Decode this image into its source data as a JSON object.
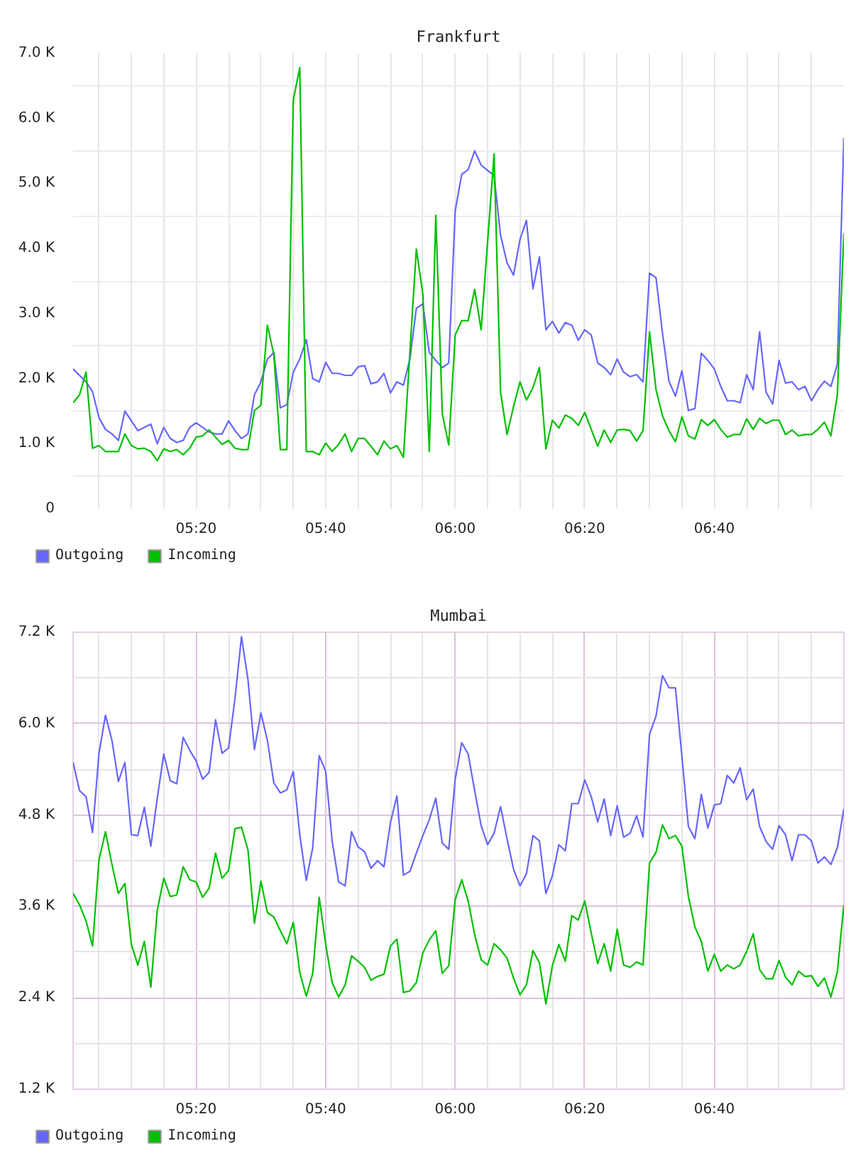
{
  "chart_data": [
    {
      "type": "line",
      "title": "Frankfurt",
      "x": [
        5.0167,
        5.0333,
        5.05,
        5.0667,
        5.0833,
        5.1,
        5.1167,
        5.1333,
        5.15,
        5.1667,
        5.1833,
        5.2,
        5.2167,
        5.2333,
        5.25,
        5.2667,
        5.2833,
        5.3,
        5.3167,
        5.3333,
        5.35,
        5.3667,
        5.3833,
        5.4,
        5.4167,
        5.4333,
        5.45,
        5.4667,
        5.4833,
        5.5,
        5.5167,
        5.5333,
        5.55,
        5.5667,
        5.5833,
        5.6,
        5.6167,
        5.6333,
        5.65,
        5.6667,
        5.6833,
        5.7,
        5.7167,
        5.7333,
        5.75,
        5.7667,
        5.7833,
        5.8,
        5.8167,
        5.8333,
        5.85,
        5.8667,
        5.8833,
        5.9,
        5.9167,
        5.9333,
        5.95,
        5.9667,
        5.9833,
        6.0,
        6.0167,
        6.0333,
        6.05,
        6.0667,
        6.0833,
        6.1,
        6.1167,
        6.1333,
        6.15,
        6.1667,
        6.1833,
        6.2,
        6.2167,
        6.2333,
        6.25,
        6.2667,
        6.2833,
        6.3,
        6.3167,
        6.3333,
        6.35,
        6.3667,
        6.3833,
        6.4,
        6.4167,
        6.4333,
        6.45,
        6.4667,
        6.4833,
        6.5,
        6.5167,
        6.5333,
        6.55,
        6.5667,
        6.5833,
        6.6,
        6.6167,
        6.6333,
        6.65,
        6.6667,
        6.6833,
        6.7,
        6.7167,
        6.7333,
        6.75,
        6.7667,
        6.7833,
        6.8,
        6.8167,
        6.8333,
        6.85,
        6.8667,
        6.8833,
        6.9,
        6.9167,
        6.9333,
        6.95,
        6.9667,
        6.9833,
        7.0
      ],
      "xlim": [
        5.0167,
        7.0
      ],
      "xticks": [
        {
          "value": 5.0833,
          "label": null
        },
        {
          "value": 5.1667,
          "label": null
        },
        {
          "value": 5.25,
          "label": null
        },
        {
          "value": 5.3333,
          "label": "05:20"
        },
        {
          "value": 5.4167,
          "label": null
        },
        {
          "value": 5.5,
          "label": null
        },
        {
          "value": 5.5833,
          "label": null
        },
        {
          "value": 5.6667,
          "label": "05:40"
        },
        {
          "value": 5.75,
          "label": null
        },
        {
          "value": 5.8333,
          "label": null
        },
        {
          "value": 5.9167,
          "label": null
        },
        {
          "value": 6.0,
          "label": "06:00"
        },
        {
          "value": 6.0833,
          "label": null
        },
        {
          "value": 6.1667,
          "label": null
        },
        {
          "value": 6.25,
          "label": null
        },
        {
          "value": 6.3333,
          "label": "06:20"
        },
        {
          "value": 6.4167,
          "label": null
        },
        {
          "value": 6.5,
          "label": null
        },
        {
          "value": 6.5833,
          "label": null
        },
        {
          "value": 6.6667,
          "label": "06:40"
        },
        {
          "value": 6.75,
          "label": null
        },
        {
          "value": 6.8333,
          "label": null
        },
        {
          "value": 6.9167,
          "label": null
        }
      ],
      "ylim": [
        0,
        7000
      ],
      "yticks": [
        0,
        {
          "value": 500,
          "label": null
        },
        {
          "value": 1000,
          "label": "1.0 K"
        },
        {
          "value": 1500,
          "label": null
        },
        {
          "value": 2000,
          "label": "2.0 K"
        },
        {
          "value": 2500,
          "label": null
        },
        {
          "value": 3000,
          "label": "3.0 K"
        },
        {
          "value": 3500,
          "label": null
        },
        {
          "value": 4000,
          "label": "4.0 K"
        },
        {
          "value": 4500,
          "label": null
        },
        {
          "value": 5000,
          "label": "5.0 K"
        },
        {
          "value": 5500,
          "label": null
        },
        {
          "value": 6000,
          "label": "6.0 K"
        },
        {
          "value": 6500,
          "label": null
        },
        {
          "value": 7000,
          "label": "7.0 K"
        }
      ],
      "grid": true,
      "legend": "bottom left",
      "series": [
        {
          "name": "Outgoing",
          "color": "#6666ff",
          "values": [
            2150,
            2050,
            1950,
            1800,
            1400,
            1220,
            1150,
            1050,
            1500,
            1350,
            1200,
            1250,
            1300,
            1000,
            1250,
            1080,
            1020,
            1050,
            1250,
            1320,
            1250,
            1180,
            1150,
            1150,
            1350,
            1200,
            1080,
            1150,
            1750,
            1950,
            2300,
            2400,
            1550,
            1600,
            2100,
            2300,
            2600,
            2000,
            1950,
            2250,
            2080,
            2080,
            2050,
            2050,
            2180,
            2200,
            1920,
            1950,
            2080,
            1780,
            1950,
            1900,
            2300,
            3080,
            3150,
            2400,
            2280,
            2170,
            2240,
            4580,
            5140,
            5210,
            5500,
            5280,
            5200,
            5120,
            4200,
            3780,
            3590,
            4140,
            4430,
            3380,
            3870,
            2750,
            2880,
            2700,
            2860,
            2820,
            2590,
            2750,
            2670,
            2240,
            2170,
            2060,
            2300,
            2100,
            2030,
            2060,
            1950,
            3620,
            3550,
            2700,
            1960,
            1730,
            2120,
            1510,
            1540,
            2390,
            2280,
            2150,
            1880,
            1660,
            1660,
            1630,
            2060,
            1830,
            2720,
            1790,
            1610,
            2280,
            1930,
            1950,
            1830,
            1880,
            1660,
            1830,
            1960,
            1880,
            2220,
            5700
          ]
        },
        {
          "name": "Incoming",
          "color": "#00c000",
          "values": [
            1630,
            1750,
            2100,
            930,
            970,
            880,
            880,
            880,
            1150,
            970,
            920,
            930,
            880,
            740,
            920,
            880,
            910,
            830,
            930,
            1100,
            1120,
            1210,
            1100,
            990,
            1050,
            930,
            910,
            910,
            1510,
            1590,
            2820,
            2370,
            910,
            910,
            6280,
            6780,
            880,
            880,
            830,
            1010,
            880,
            990,
            1150,
            880,
            1080,
            1080,
            960,
            830,
            1040,
            920,
            970,
            790,
            2400,
            3990,
            3300,
            880,
            4510,
            1460,
            980,
            2670,
            2890,
            2890,
            3370,
            2750,
            4100,
            5450,
            1790,
            1140,
            1570,
            1950,
            1670,
            1860,
            2170,
            920,
            1360,
            1240,
            1440,
            1390,
            1280,
            1480,
            1220,
            960,
            1210,
            1020,
            1210,
            1220,
            1200,
            1040,
            1200,
            2720,
            1830,
            1430,
            1200,
            1030,
            1410,
            1120,
            1070,
            1370,
            1280,
            1370,
            1220,
            1100,
            1140,
            1140,
            1380,
            1220,
            1390,
            1310,
            1360,
            1360,
            1140,
            1210,
            1120,
            1140,
            1140,
            1220,
            1330,
            1120,
            1750,
            4230
          ]
        }
      ]
    },
    {
      "type": "line",
      "title": "Mumbai",
      "x": [
        5.0167,
        5.0333,
        5.05,
        5.0667,
        5.0833,
        5.1,
        5.1167,
        5.1333,
        5.15,
        5.1667,
        5.1833,
        5.2,
        5.2167,
        5.2333,
        5.25,
        5.2667,
        5.2833,
        5.3,
        5.3167,
        5.3333,
        5.35,
        5.3667,
        5.3833,
        5.4,
        5.4167,
        5.4333,
        5.45,
        5.4667,
        5.4833,
        5.5,
        5.5167,
        5.5333,
        5.55,
        5.5667,
        5.5833,
        5.6,
        5.6167,
        5.6333,
        5.65,
        5.6667,
        5.6833,
        5.7,
        5.7167,
        5.7333,
        5.75,
        5.7667,
        5.7833,
        5.8,
        5.8167,
        5.8333,
        5.85,
        5.8667,
        5.8833,
        5.9,
        5.9167,
        5.9333,
        5.95,
        5.9667,
        5.9833,
        6.0,
        6.0167,
        6.0333,
        6.05,
        6.0667,
        6.0833,
        6.1,
        6.1167,
        6.1333,
        6.15,
        6.1667,
        6.1833,
        6.2,
        6.2167,
        6.2333,
        6.25,
        6.2667,
        6.2833,
        6.3,
        6.3167,
        6.3333,
        6.35,
        6.3667,
        6.3833,
        6.4,
        6.4167,
        6.4333,
        6.45,
        6.4667,
        6.4833,
        6.5,
        6.5167,
        6.5333,
        6.55,
        6.5667,
        6.5833,
        6.6,
        6.6167,
        6.6333,
        6.65,
        6.6667,
        6.6833,
        6.7,
        6.7167,
        6.7333,
        6.75,
        6.7667,
        6.7833,
        6.8,
        6.8167,
        6.8333,
        6.85,
        6.8667,
        6.8833,
        6.9,
        6.9167,
        6.9333,
        6.95,
        6.9667,
        6.9833,
        7.0
      ],
      "xlim": [
        5.0167,
        7.0
      ],
      "xticks": [
        {
          "value": 5.0833,
          "label": null
        },
        {
          "value": 5.1667,
          "label": null
        },
        {
          "value": 5.25,
          "label": null
        },
        {
          "value": 5.3333,
          "label": "05:20"
        },
        {
          "value": 5.4167,
          "label": null
        },
        {
          "value": 5.5,
          "label": null
        },
        {
          "value": 5.5833,
          "label": null
        },
        {
          "value": 5.6667,
          "label": "05:40"
        },
        {
          "value": 5.75,
          "label": null
        },
        {
          "value": 5.8333,
          "label": null
        },
        {
          "value": 5.9167,
          "label": null
        },
        {
          "value": 6.0,
          "label": "06:00"
        },
        {
          "value": 6.0833,
          "label": null
        },
        {
          "value": 6.1667,
          "label": null
        },
        {
          "value": 6.25,
          "label": null
        },
        {
          "value": 6.3333,
          "label": "06:20"
        },
        {
          "value": 6.4167,
          "label": null
        },
        {
          "value": 6.5,
          "label": null
        },
        {
          "value": 6.5833,
          "label": null
        },
        {
          "value": 6.6667,
          "label": "06:40"
        },
        {
          "value": 6.75,
          "label": null
        },
        {
          "value": 6.8333,
          "label": null
        },
        {
          "value": 6.9167,
          "label": null
        }
      ],
      "ylim": [
        1200,
        7200
      ],
      "yticks": [
        {
          "value": 1200,
          "label": "1.2 K"
        },
        {
          "value": 1800,
          "label": null
        },
        {
          "value": 2400,
          "label": "2.4 K"
        },
        {
          "value": 3000,
          "label": null
        },
        {
          "value": 3600,
          "label": "3.6 K"
        },
        {
          "value": 4200,
          "label": null
        },
        {
          "value": 4800,
          "label": "4.8 K"
        },
        {
          "value": 5400,
          "label": null
        },
        {
          "value": 6000,
          "label": "6.0 K"
        },
        {
          "value": 6600,
          "label": null
        },
        {
          "value": 7200,
          "label": "7.2 K"
        }
      ],
      "grid": true,
      "legend": "bottom left",
      "series": [
        {
          "name": "Outgoing",
          "color": "#6666ff",
          "values": [
            5490,
            5120,
            5040,
            4570,
            5610,
            6110,
            5780,
            5240,
            5490,
            4540,
            4530,
            4900,
            4390,
            5020,
            5600,
            5250,
            5210,
            5820,
            5650,
            5510,
            5270,
            5360,
            6050,
            5610,
            5680,
            6330,
            7140,
            6580,
            5660,
            6140,
            5780,
            5220,
            5090,
            5130,
            5370,
            4540,
            3940,
            4370,
            5580,
            5370,
            4460,
            3920,
            3870,
            4580,
            4380,
            4320,
            4100,
            4200,
            4120,
            4700,
            5050,
            4010,
            4060,
            4300,
            4530,
            4740,
            5020,
            4430,
            4350,
            5270,
            5750,
            5600,
            5120,
            4660,
            4410,
            4560,
            4910,
            4490,
            4090,
            3870,
            4030,
            4530,
            4460,
            3770,
            4000,
            4410,
            4330,
            4950,
            4950,
            5260,
            5040,
            4710,
            5010,
            4530,
            4920,
            4510,
            4560,
            4790,
            4510,
            5860,
            6100,
            6630,
            6470,
            6470,
            5570,
            4650,
            4490,
            5070,
            4630,
            4930,
            4950,
            5320,
            5220,
            5420,
            5000,
            5140,
            4650,
            4450,
            4350,
            4660,
            4540,
            4200,
            4540,
            4540,
            4460,
            4170,
            4250,
            4150,
            4370,
            4880
          ]
        },
        {
          "name": "Incoming",
          "color": "#00c000",
          "values": [
            3770,
            3620,
            3410,
            3080,
            4210,
            4580,
            4150,
            3770,
            3900,
            3100,
            2830,
            3140,
            2540,
            3550,
            3970,
            3730,
            3750,
            4120,
            3950,
            3920,
            3720,
            3840,
            4300,
            3970,
            4070,
            4620,
            4640,
            4340,
            3380,
            3930,
            3520,
            3460,
            3280,
            3110,
            3390,
            2730,
            2420,
            2720,
            3720,
            3100,
            2600,
            2410,
            2570,
            2950,
            2880,
            2800,
            2630,
            2680,
            2710,
            3080,
            3170,
            2470,
            2490,
            2600,
            2990,
            3160,
            3280,
            2720,
            2820,
            3690,
            3950,
            3670,
            3230,
            2900,
            2830,
            3110,
            3030,
            2920,
            2660,
            2440,
            2570,
            3020,
            2860,
            2320,
            2820,
            3100,
            2880,
            3480,
            3420,
            3670,
            3250,
            2850,
            3110,
            2750,
            3300,
            2830,
            2800,
            2870,
            2830,
            4170,
            4310,
            4670,
            4490,
            4530,
            4390,
            3730,
            3330,
            3140,
            2750,
            2970,
            2750,
            2830,
            2780,
            2830,
            3010,
            3240,
            2770,
            2650,
            2650,
            2890,
            2670,
            2570,
            2750,
            2680,
            2690,
            2550,
            2660,
            2410,
            2740,
            3620
          ]
        }
      ]
    }
  ]
}
